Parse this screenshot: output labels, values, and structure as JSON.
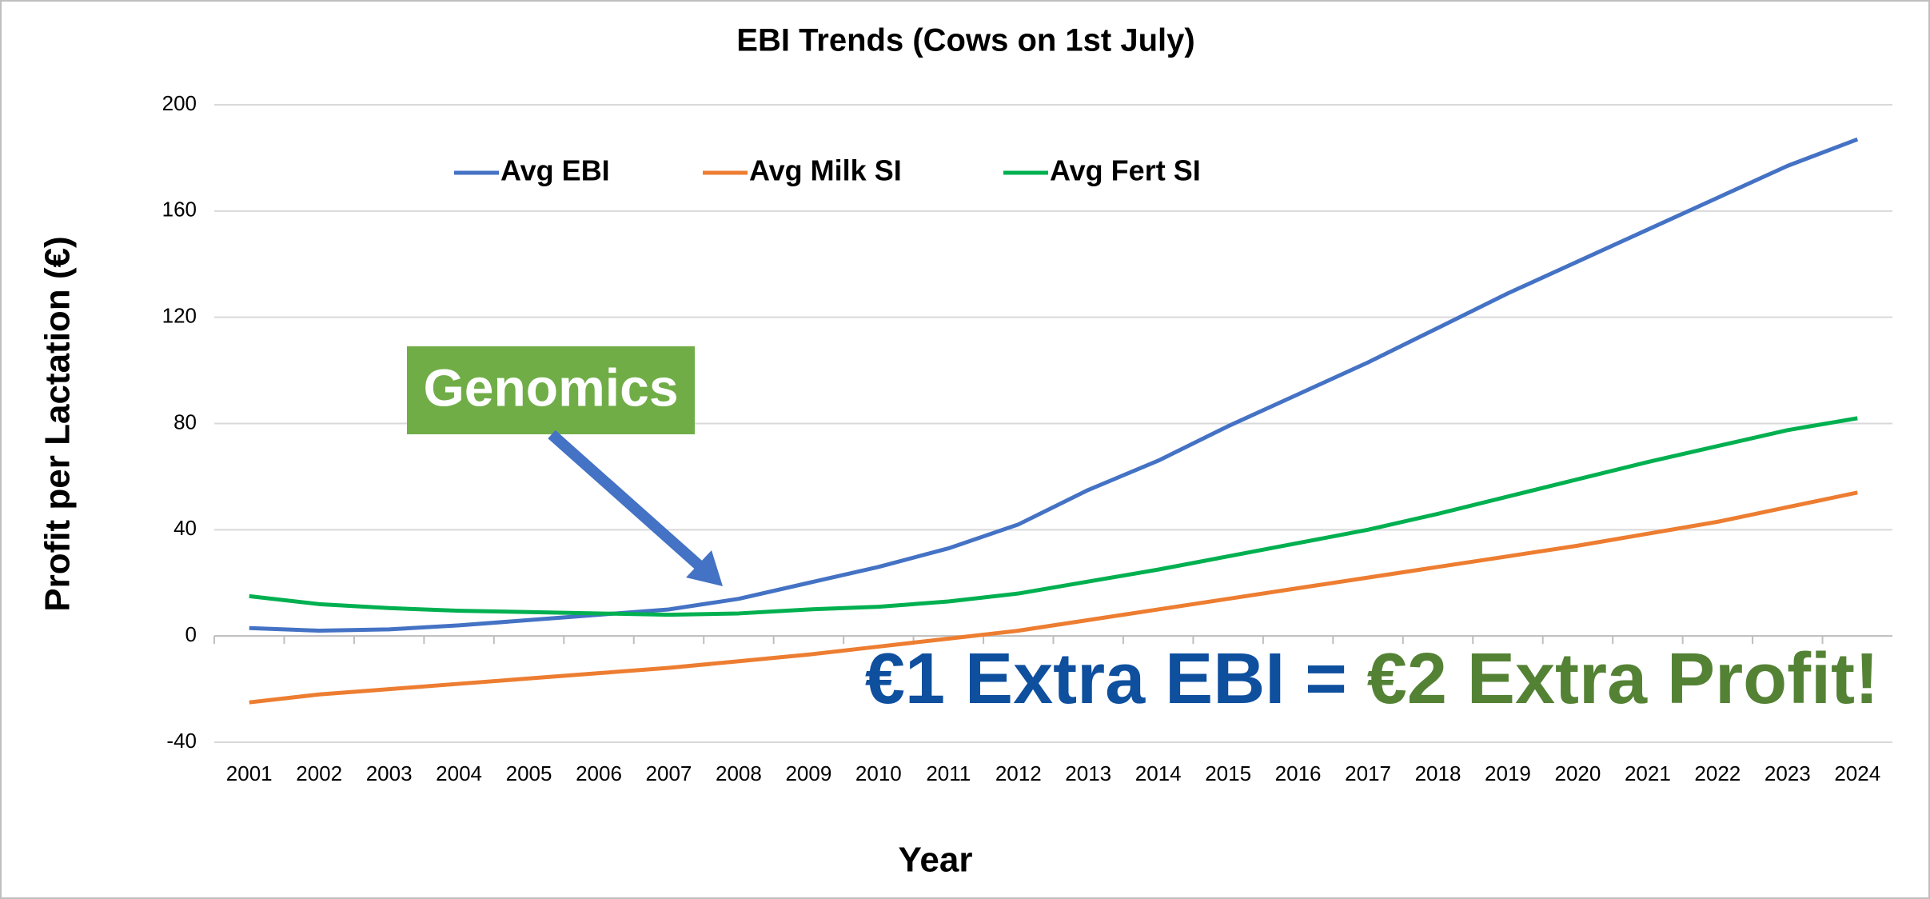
{
  "chart_data": {
    "type": "line",
    "title": "EBI Trends (Cows on 1st July)",
    "x_label": "Year",
    "y_label": "Profit per Lactation (€)",
    "categories": [
      "2001",
      "2002",
      "2003",
      "2004",
      "2005",
      "2006",
      "2007",
      "2008",
      "2009",
      "2010",
      "2011",
      "2012",
      "2013",
      "2014",
      "2015",
      "2016",
      "2017",
      "2018",
      "2019",
      "2020",
      "2021",
      "2022",
      "2023",
      "2024"
    ],
    "series": [
      {
        "name": "Avg EBI",
        "color": "#4472c4",
        "values": [
          3,
          2,
          2.5,
          4,
          6,
          8,
          10,
          14,
          20,
          26,
          33,
          42,
          55,
          66,
          79,
          91,
          103,
          116,
          129,
          141,
          153,
          165,
          177,
          187
        ]
      },
      {
        "name": "Avg Milk SI",
        "color": "#ed7d31",
        "values": [
          -25,
          -22,
          -20,
          -18,
          -16,
          -14,
          -12,
          -9.5,
          -7,
          -4,
          -1,
          2,
          6,
          10,
          14,
          18,
          22,
          26,
          30,
          34,
          38.5,
          43,
          48.5,
          54
        ]
      },
      {
        "name": "Avg Fert SI",
        "color": "#00b050",
        "values": [
          15,
          12,
          10.5,
          9.5,
          9,
          8.5,
          8,
          8.5,
          10,
          11,
          13,
          16,
          20.5,
          25,
          30,
          35,
          40,
          46,
          52.5,
          59,
          65.5,
          71.5,
          77.5,
          82
        ]
      }
    ],
    "ylim": [
      -40,
      200
    ],
    "yticks": [
      -40,
      0,
      40,
      80,
      120,
      160,
      200
    ],
    "grid": true,
    "legend": "top",
    "annotations": {
      "callout": "Genomics",
      "headline": [
        "€1 Extra EBI",
        "=",
        "€2 Extra Profit!"
      ]
    }
  }
}
